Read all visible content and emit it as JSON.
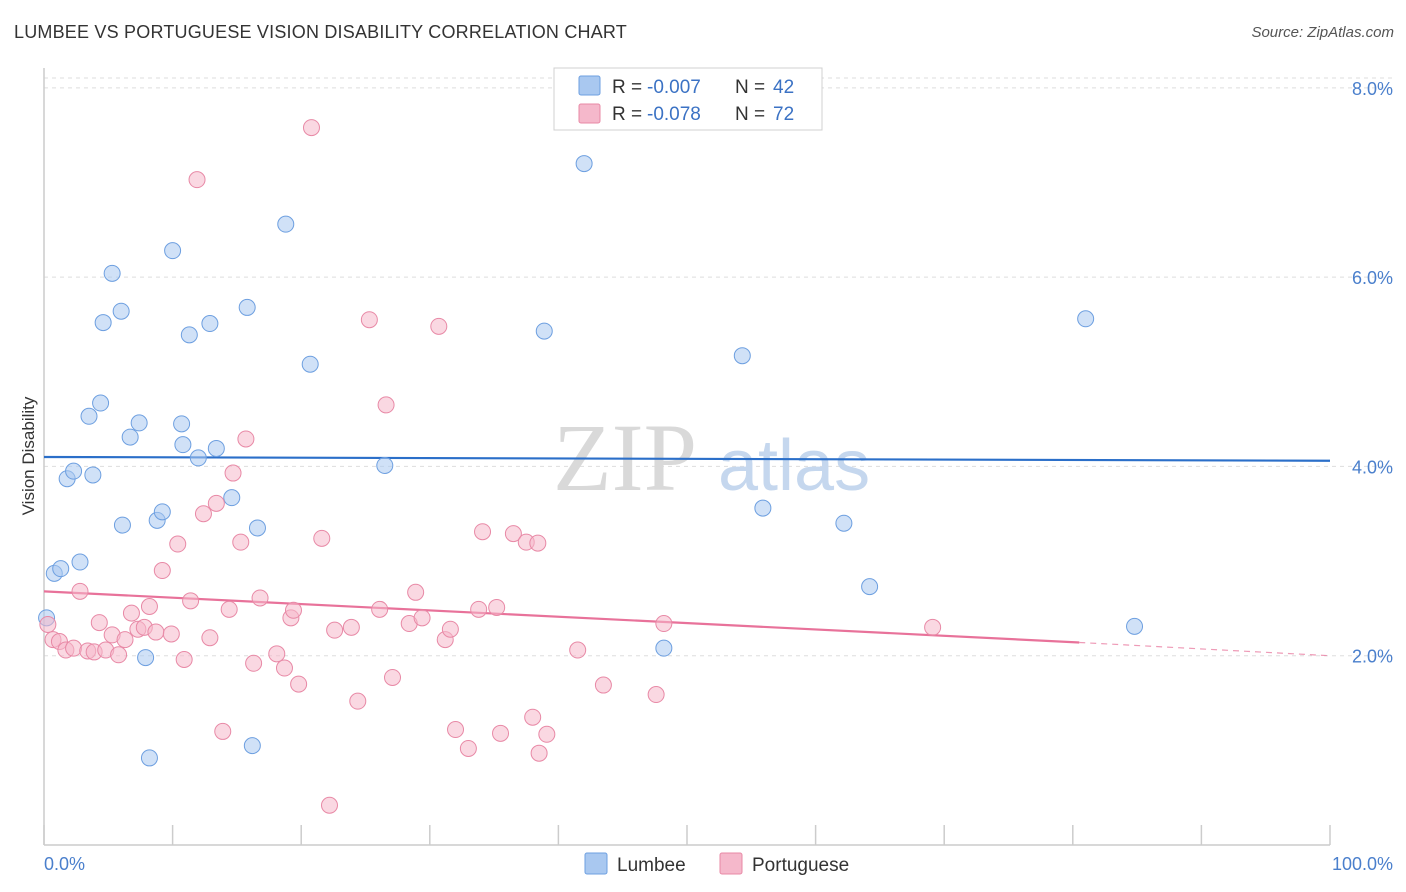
{
  "header": {
    "title": "LUMBEE VS PORTUGUESE VISION DISABILITY CORRELATION CHART",
    "source": "Source: ZipAtlas.com"
  },
  "watermark": {
    "zip": "ZIP",
    "atlas": "atlas"
  },
  "legend": {
    "rows": [
      {
        "r_label": "R =",
        "r_value": "-0.007",
        "n_label": "N =",
        "n_value": "42",
        "color": "#a9c8f0"
      },
      {
        "r_label": "R =",
        "r_value": "-0.078",
        "n_label": "N =",
        "n_value": "72",
        "color": "#f5b8cb"
      }
    ]
  },
  "chart_data": {
    "type": "scatter",
    "title": "LUMBEE VS PORTUGUESE VISION DISABILITY CORRELATION CHART",
    "ylabel": "Vision Disability",
    "xlabel": "",
    "xlim": [
      0,
      100
    ],
    "ylim": [
      0,
      8.4
    ],
    "x_tick_labels": [
      "0.0%",
      "100.0%"
    ],
    "y_ticks": [
      2,
      4,
      6,
      8
    ],
    "y_tick_labels": [
      "2.0%",
      "4.0%",
      "6.0%",
      "8.0%"
    ],
    "grid": true,
    "series": [
      {
        "name": "Lumbee",
        "color": "#a9c8f0",
        "stroke": "#6d9fe0",
        "trend_color": "#2b6fc9",
        "trend": {
          "x0": 0,
          "y0": 4.1,
          "x1": 100,
          "y1": 4.06
        },
        "points": [
          [
            0.2,
            2.4
          ],
          [
            0.8,
            2.87
          ],
          [
            1.3,
            2.92
          ],
          [
            1.8,
            3.87
          ],
          [
            2.3,
            3.95
          ],
          [
            2.8,
            2.99
          ],
          [
            3.5,
            4.53
          ],
          [
            3.8,
            3.91
          ],
          [
            4.4,
            4.67
          ],
          [
            4.6,
            5.52
          ],
          [
            5.3,
            6.04
          ],
          [
            6.1,
            3.38
          ],
          [
            6.0,
            5.64
          ],
          [
            6.7,
            4.31
          ],
          [
            7.4,
            4.46
          ],
          [
            7.9,
            1.98
          ],
          [
            8.2,
            0.92
          ],
          [
            8.8,
            3.43
          ],
          [
            9.2,
            3.52
          ],
          [
            10.0,
            6.28
          ],
          [
            10.7,
            4.45
          ],
          [
            10.8,
            4.23
          ],
          [
            11.3,
            5.39
          ],
          [
            12.0,
            4.09
          ],
          [
            12.9,
            5.51
          ],
          [
            13.4,
            4.19
          ],
          [
            14.6,
            3.67
          ],
          [
            15.8,
            5.68
          ],
          [
            16.2,
            1.05
          ],
          [
            16.6,
            3.35
          ],
          [
            18.8,
            6.56
          ],
          [
            20.7,
            5.08
          ],
          [
            26.5,
            4.01
          ],
          [
            38.9,
            5.43
          ],
          [
            42.0,
            7.2
          ],
          [
            48.2,
            2.08
          ],
          [
            54.3,
            5.17
          ],
          [
            55.9,
            3.56
          ],
          [
            62.2,
            3.4
          ],
          [
            64.2,
            2.73
          ],
          [
            81.0,
            5.56
          ],
          [
            84.8,
            2.31
          ]
        ]
      },
      {
        "name": "Portuguese",
        "color": "#f5b8cb",
        "stroke": "#e889a6",
        "trend_color": "#e8729a",
        "trend": {
          "x0": 0,
          "y0": 2.68,
          "x1": 80.5,
          "y1": 2.14
        },
        "trend_dashed": {
          "x0": 80.5,
          "y0": 2.14,
          "x1": 100,
          "y1": 2.0
        },
        "points": [
          [
            0.3,
            2.33
          ],
          [
            0.7,
            2.17
          ],
          [
            1.2,
            2.15
          ],
          [
            1.7,
            2.06
          ],
          [
            2.3,
            2.08
          ],
          [
            2.8,
            2.68
          ],
          [
            3.4,
            2.05
          ],
          [
            3.9,
            2.04
          ],
          [
            4.3,
            2.35
          ],
          [
            4.8,
            2.06
          ],
          [
            5.3,
            2.22
          ],
          [
            5.8,
            2.01
          ],
          [
            6.3,
            2.17
          ],
          [
            6.8,
            2.45
          ],
          [
            7.3,
            2.28
          ],
          [
            7.8,
            2.3
          ],
          [
            8.2,
            2.52
          ],
          [
            8.7,
            2.25
          ],
          [
            9.2,
            2.9
          ],
          [
            9.9,
            2.23
          ],
          [
            10.4,
            3.18
          ],
          [
            10.9,
            1.96
          ],
          [
            11.4,
            2.58
          ],
          [
            11.9,
            7.03
          ],
          [
            12.4,
            3.5
          ],
          [
            12.9,
            2.19
          ],
          [
            13.4,
            3.61
          ],
          [
            13.9,
            1.2
          ],
          [
            14.4,
            2.49
          ],
          [
            14.7,
            3.93
          ],
          [
            15.3,
            3.2
          ],
          [
            15.7,
            4.29
          ],
          [
            16.3,
            1.92
          ],
          [
            16.8,
            2.61
          ],
          [
            18.1,
            2.02
          ],
          [
            18.7,
            1.87
          ],
          [
            19.2,
            2.4
          ],
          [
            19.4,
            2.48
          ],
          [
            19.8,
            1.7
          ],
          [
            20.8,
            7.58
          ],
          [
            21.6,
            3.24
          ],
          [
            22.2,
            0.42
          ],
          [
            22.6,
            2.27
          ],
          [
            23.9,
            2.3
          ],
          [
            24.4,
            1.52
          ],
          [
            25.3,
            5.55
          ],
          [
            26.1,
            2.49
          ],
          [
            26.6,
            4.65
          ],
          [
            27.1,
            1.77
          ],
          [
            28.4,
            2.34
          ],
          [
            28.9,
            2.67
          ],
          [
            29.4,
            2.4
          ],
          [
            30.7,
            5.48
          ],
          [
            31.2,
            2.17
          ],
          [
            31.6,
            2.28
          ],
          [
            32.0,
            1.22
          ],
          [
            33.0,
            1.02
          ],
          [
            33.8,
            2.49
          ],
          [
            34.1,
            3.31
          ],
          [
            35.2,
            2.51
          ],
          [
            35.5,
            1.18
          ],
          [
            36.5,
            3.29
          ],
          [
            37.5,
            3.2
          ],
          [
            38.0,
            1.35
          ],
          [
            38.4,
            3.19
          ],
          [
            38.5,
            0.97
          ],
          [
            39.1,
            1.17
          ],
          [
            41.5,
            2.06
          ],
          [
            43.5,
            1.69
          ],
          [
            47.6,
            1.59
          ],
          [
            48.2,
            2.34
          ],
          [
            69.1,
            2.3
          ]
        ]
      }
    ],
    "legend_position": "top-center",
    "bottom_legend": [
      "Lumbee",
      "Portuguese"
    ]
  }
}
